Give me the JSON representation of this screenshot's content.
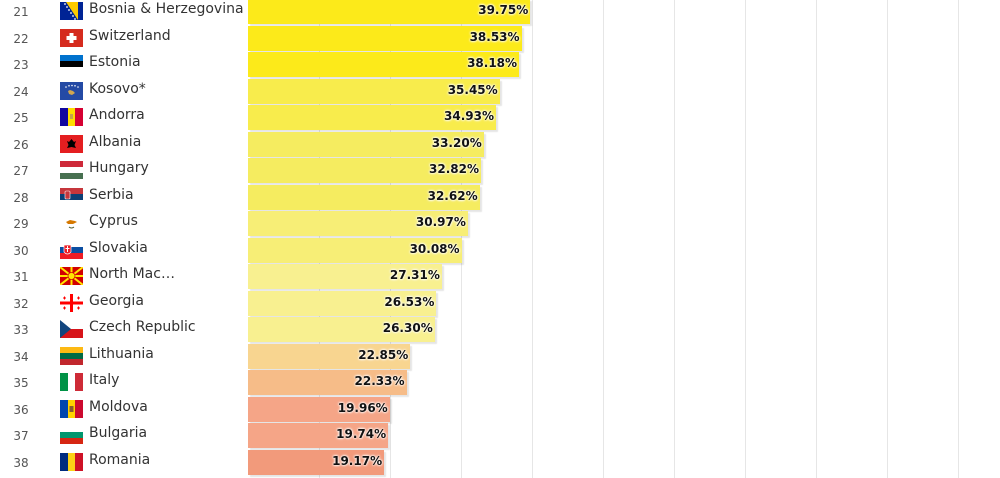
{
  "chart_data": {
    "type": "bar",
    "orientation": "horizontal",
    "categories": [
      "Bosnia & Herzegovina",
      "Switzerland",
      "Estonia",
      "Kosovo*",
      "Andorra",
      "Albania",
      "Hungary",
      "Serbia",
      "Cyprus",
      "Slovakia",
      "North Mac…",
      "Georgia",
      "Czech Republic",
      "Lithuania",
      "Italy",
      "Moldova",
      "Bulgaria",
      "Romania"
    ],
    "ranks": [
      21,
      22,
      23,
      24,
      25,
      26,
      27,
      28,
      29,
      30,
      31,
      32,
      33,
      34,
      35,
      36,
      37,
      38
    ],
    "values": [
      39.75,
      38.53,
      38.18,
      35.45,
      34.93,
      33.2,
      32.82,
      32.62,
      30.97,
      30.08,
      27.31,
      26.53,
      26.3,
      22.85,
      22.33,
      19.96,
      19.74,
      19.17
    ],
    "value_labels": [
      "39.75%",
      "38.53%",
      "38.18%",
      "35.45%",
      "34.93%",
      "33.20%",
      "32.82%",
      "32.62%",
      "30.97%",
      "30.08%",
      "27.31%",
      "26.53%",
      "26.30%",
      "22.85%",
      "22.33%",
      "19.96%",
      "19.74%",
      "19.17%"
    ],
    "flags": [
      "ba",
      "ch",
      "ee",
      "xk",
      "ad",
      "al",
      "hu",
      "rs",
      "cy",
      "sk",
      "mk",
      "ge",
      "cz",
      "lt",
      "it",
      "md",
      "bg",
      "ro"
    ],
    "bar_colors": [
      "#fcea1a",
      "#fcea1a",
      "#fcea1a",
      "#f8ec4c",
      "#f8ec4c",
      "#f5ec60",
      "#f5ec60",
      "#f5ec60",
      "#f7ee76",
      "#f7ee76",
      "#f8f090",
      "#f8f090",
      "#f8f090",
      "#f8d590",
      "#f6bc88",
      "#f5a587",
      "#f5a587",
      "#f29a7b"
    ],
    "xlim": [
      0,
      100
    ],
    "grid": true,
    "title": "",
    "xlabel": "",
    "ylabel": ""
  }
}
